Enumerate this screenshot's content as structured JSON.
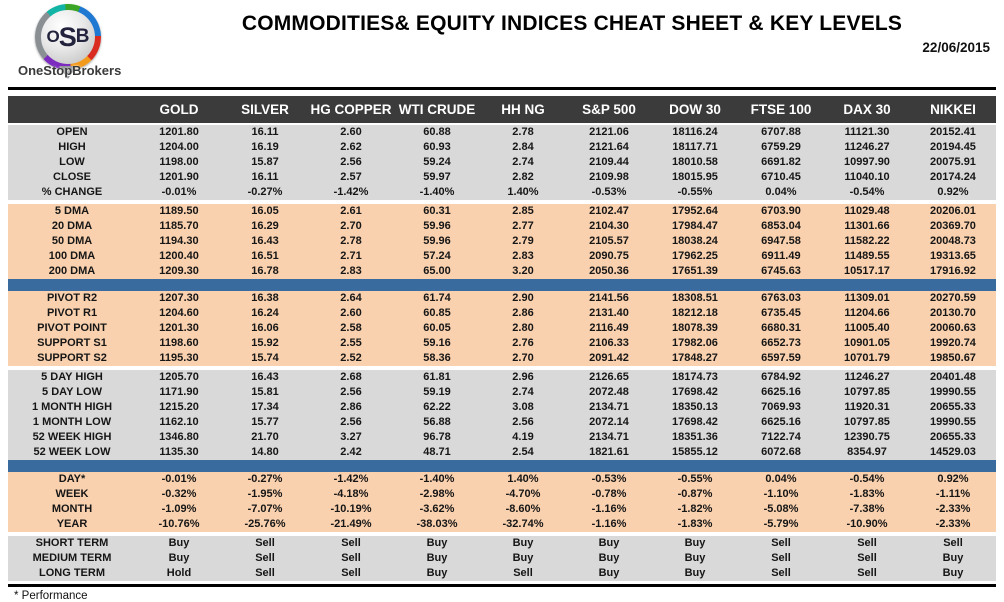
{
  "header": {
    "logo_monogram": [
      "O",
      "S",
      "B"
    ],
    "logo_brand": "OneStopBrokers",
    "title": "COMMODITIES& EQUITY INDICES CHEAT SHEET & KEY LEVELS",
    "date": "22/06/2015"
  },
  "columns": [
    "GOLD",
    "SILVER",
    "HG COPPER",
    "WTI CRUDE",
    "HH NG",
    "S&P 500",
    "DOW 30",
    "FTSE 100",
    "DAX 30",
    "NIKKEI"
  ],
  "sections": [
    {
      "id": "ohlc",
      "theme": "gray",
      "sep_after": "gap",
      "rows": [
        {
          "label": "OPEN",
          "values": [
            "1201.80",
            "16.11",
            "2.60",
            "60.88",
            "2.78",
            "2121.06",
            "18116.24",
            "6707.88",
            "11121.30",
            "20152.41"
          ]
        },
        {
          "label": "HIGH",
          "values": [
            "1204.00",
            "16.19",
            "2.62",
            "60.93",
            "2.84",
            "2121.64",
            "18117.71",
            "6759.29",
            "11246.27",
            "20194.45"
          ]
        },
        {
          "label": "LOW",
          "values": [
            "1198.00",
            "15.87",
            "2.56",
            "59.24",
            "2.74",
            "2109.44",
            "18010.58",
            "6691.82",
            "10997.90",
            "20075.91"
          ]
        },
        {
          "label": "CLOSE",
          "values": [
            "1201.90",
            "16.11",
            "2.57",
            "59.97",
            "2.82",
            "2109.98",
            "18015.95",
            "6710.45",
            "11040.10",
            "20174.24"
          ]
        },
        {
          "label": "% CHANGE",
          "values": [
            "-0.01%",
            "-0.27%",
            "-1.42%",
            "-1.40%",
            "1.40%",
            "-0.53%",
            "-0.55%",
            "0.04%",
            "-0.54%",
            "0.92%"
          ]
        }
      ]
    },
    {
      "id": "dma",
      "theme": "peach",
      "sep_after": "blue",
      "rows": [
        {
          "label": "5 DMA",
          "values": [
            "1189.50",
            "16.05",
            "2.61",
            "60.31",
            "2.85",
            "2102.47",
            "17952.64",
            "6703.90",
            "11029.48",
            "20206.01"
          ]
        },
        {
          "label": "20 DMA",
          "values": [
            "1185.70",
            "16.29",
            "2.70",
            "59.96",
            "2.77",
            "2104.30",
            "17984.47",
            "6853.04",
            "11301.66",
            "20369.70"
          ]
        },
        {
          "label": "50 DMA",
          "values": [
            "1194.30",
            "16.43",
            "2.78",
            "59.96",
            "2.79",
            "2105.57",
            "18038.24",
            "6947.58",
            "11582.22",
            "20048.73"
          ]
        },
        {
          "label": "100 DMA",
          "values": [
            "1200.40",
            "16.51",
            "2.71",
            "57.24",
            "2.83",
            "2090.75",
            "17962.25",
            "6911.49",
            "11489.55",
            "19313.65"
          ]
        },
        {
          "label": "200 DMA",
          "values": [
            "1209.30",
            "16.78",
            "2.83",
            "65.00",
            "3.20",
            "2050.36",
            "17651.39",
            "6745.63",
            "10517.17",
            "17916.92"
          ]
        }
      ]
    },
    {
      "id": "pivots",
      "theme": "peach",
      "sep_after": "gap",
      "rows": [
        {
          "label": "PIVOT R2",
          "label_color": "green",
          "values": [
            "1207.30",
            "16.38",
            "2.64",
            "61.74",
            "2.90",
            "2141.56",
            "18308.51",
            "6763.03",
            "11309.01",
            "20270.59"
          ]
        },
        {
          "label": "PIVOT R1",
          "label_color": "green",
          "values": [
            "1204.60",
            "16.24",
            "2.60",
            "60.85",
            "2.86",
            "2131.40",
            "18212.18",
            "6735.45",
            "11204.66",
            "20130.70"
          ]
        },
        {
          "label": "PIVOT POINT",
          "label_color": "navy",
          "values": [
            "1201.30",
            "16.06",
            "2.58",
            "60.05",
            "2.80",
            "2116.49",
            "18078.39",
            "6680.31",
            "11005.40",
            "20060.63"
          ]
        },
        {
          "label": "SUPPORT S1",
          "label_color": "red",
          "values": [
            "1198.60",
            "15.92",
            "2.55",
            "59.16",
            "2.76",
            "2106.33",
            "17982.06",
            "6652.73",
            "10901.05",
            "19920.74"
          ]
        },
        {
          "label": "SUPPORT S2",
          "label_color": "red",
          "values": [
            "1195.30",
            "15.74",
            "2.52",
            "58.36",
            "2.70",
            "2091.42",
            "17848.27",
            "6597.59",
            "10701.79",
            "19850.67"
          ]
        }
      ]
    },
    {
      "id": "ranges",
      "theme": "gray",
      "sep_after": "blue",
      "rows": [
        {
          "label": "5 DAY HIGH",
          "values": [
            "1205.70",
            "16.43",
            "2.68",
            "61.81",
            "2.96",
            "2126.65",
            "18174.73",
            "6784.92",
            "11246.27",
            "20401.48"
          ]
        },
        {
          "label": "5 DAY LOW",
          "values": [
            "1171.90",
            "15.81",
            "2.56",
            "59.19",
            "2.74",
            "2072.48",
            "17698.42",
            "6625.16",
            "10797.85",
            "19990.55"
          ]
        },
        {
          "label": "1 MONTH HIGH",
          "values": [
            "1215.20",
            "17.34",
            "2.86",
            "62.22",
            "3.08",
            "2134.71",
            "18350.13",
            "7069.93",
            "11920.31",
            "20655.33"
          ]
        },
        {
          "label": "1 MONTH LOW",
          "values": [
            "1162.10",
            "15.77",
            "2.56",
            "56.88",
            "2.56",
            "2072.14",
            "17698.42",
            "6625.16",
            "10797.85",
            "19990.55"
          ]
        },
        {
          "label": "52 WEEK HIGH",
          "values": [
            "1346.80",
            "21.70",
            "3.27",
            "96.78",
            "4.19",
            "2134.71",
            "18351.36",
            "7122.74",
            "12390.75",
            "20655.33"
          ]
        },
        {
          "label": "52 WEEK LOW",
          "values": [
            "1135.30",
            "14.80",
            "2.42",
            "48.71",
            "2.54",
            "1821.61",
            "15855.12",
            "6072.68",
            "8354.97",
            "14529.03"
          ]
        }
      ]
    },
    {
      "id": "performance",
      "theme": "peach",
      "sep_after": "gap",
      "rows": [
        {
          "label": "DAY*",
          "values": [
            "-0.01%",
            "-0.27%",
            "-1.42%",
            "-1.40%",
            "1.40%",
            "-0.53%",
            "-0.55%",
            "0.04%",
            "-0.54%",
            "0.92%"
          ]
        },
        {
          "label": "WEEK",
          "values": [
            "-0.32%",
            "-1.95%",
            "-4.18%",
            "-2.98%",
            "-4.70%",
            "-0.78%",
            "-0.87%",
            "-1.10%",
            "-1.83%",
            "-1.11%"
          ]
        },
        {
          "label": "MONTH",
          "values": [
            "-1.09%",
            "-7.07%",
            "-10.19%",
            "-3.62%",
            "-8.60%",
            "-1.16%",
            "-1.82%",
            "-5.08%",
            "-7.38%",
            "-2.33%"
          ]
        },
        {
          "label": "YEAR",
          "values": [
            "-10.76%",
            "-25.76%",
            "-21.49%",
            "-38.03%",
            "-32.74%",
            "-1.16%",
            "-1.83%",
            "-5.79%",
            "-10.90%",
            "-2.33%"
          ]
        }
      ]
    },
    {
      "id": "signals",
      "theme": "gray",
      "sep_after": null,
      "rows": [
        {
          "label": "SHORT TERM",
          "values": [
            "Buy",
            "Sell",
            "Sell",
            "Buy",
            "Buy",
            "Buy",
            "Buy",
            "Sell",
            "Sell",
            "Sell"
          ]
        },
        {
          "label": "MEDIUM TERM",
          "values": [
            "Buy",
            "Sell",
            "Sell",
            "Buy",
            "Buy",
            "Buy",
            "Buy",
            "Sell",
            "Sell",
            "Buy"
          ]
        },
        {
          "label": "LONG TERM",
          "values": [
            "Hold",
            "Sell",
            "Sell",
            "Buy",
            "Sell",
            "Buy",
            "Buy",
            "Sell",
            "Sell",
            "Buy"
          ]
        }
      ]
    }
  ],
  "footnote": "* Performance",
  "colors": {
    "header_bg": "#3b3b3b",
    "gray_row": "#d9d9d9",
    "peach_row": "#fad1ae",
    "blue_bar": "#3a6b9e",
    "green": "#00b050",
    "red": "#ff0000",
    "navy": "#1f3864",
    "hold": "#0070c0"
  }
}
